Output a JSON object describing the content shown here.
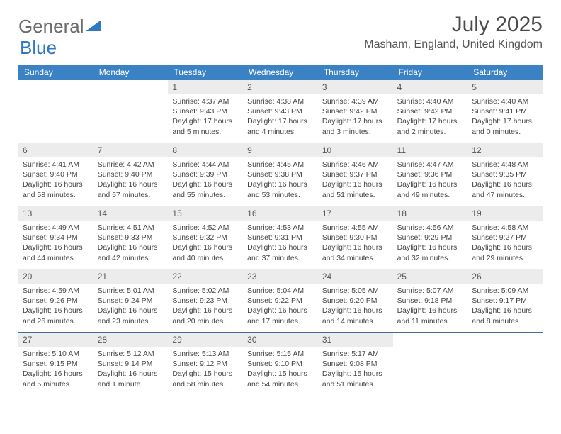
{
  "logo": {
    "text1": "General",
    "text2": "Blue",
    "triangle_color": "#2f79bf"
  },
  "title": "July 2025",
  "location": "Masham, England, United Kingdom",
  "header_bg": "#3b82c4",
  "week_border": "#3b6fa0",
  "daynum_bg": "#ececec",
  "day_names": [
    "Sunday",
    "Monday",
    "Tuesday",
    "Wednesday",
    "Thursday",
    "Friday",
    "Saturday"
  ],
  "weeks": [
    [
      null,
      null,
      {
        "n": "1",
        "sr": "4:37 AM",
        "ss": "9:43 PM",
        "dl": "17 hours and 5 minutes."
      },
      {
        "n": "2",
        "sr": "4:38 AM",
        "ss": "9:43 PM",
        "dl": "17 hours and 4 minutes."
      },
      {
        "n": "3",
        "sr": "4:39 AM",
        "ss": "9:42 PM",
        "dl": "17 hours and 3 minutes."
      },
      {
        "n": "4",
        "sr": "4:40 AM",
        "ss": "9:42 PM",
        "dl": "17 hours and 2 minutes."
      },
      {
        "n": "5",
        "sr": "4:40 AM",
        "ss": "9:41 PM",
        "dl": "17 hours and 0 minutes."
      }
    ],
    [
      {
        "n": "6",
        "sr": "4:41 AM",
        "ss": "9:40 PM",
        "dl": "16 hours and 58 minutes."
      },
      {
        "n": "7",
        "sr": "4:42 AM",
        "ss": "9:40 PM",
        "dl": "16 hours and 57 minutes."
      },
      {
        "n": "8",
        "sr": "4:44 AM",
        "ss": "9:39 PM",
        "dl": "16 hours and 55 minutes."
      },
      {
        "n": "9",
        "sr": "4:45 AM",
        "ss": "9:38 PM",
        "dl": "16 hours and 53 minutes."
      },
      {
        "n": "10",
        "sr": "4:46 AM",
        "ss": "9:37 PM",
        "dl": "16 hours and 51 minutes."
      },
      {
        "n": "11",
        "sr": "4:47 AM",
        "ss": "9:36 PM",
        "dl": "16 hours and 49 minutes."
      },
      {
        "n": "12",
        "sr": "4:48 AM",
        "ss": "9:35 PM",
        "dl": "16 hours and 47 minutes."
      }
    ],
    [
      {
        "n": "13",
        "sr": "4:49 AM",
        "ss": "9:34 PM",
        "dl": "16 hours and 44 minutes."
      },
      {
        "n": "14",
        "sr": "4:51 AM",
        "ss": "9:33 PM",
        "dl": "16 hours and 42 minutes."
      },
      {
        "n": "15",
        "sr": "4:52 AM",
        "ss": "9:32 PM",
        "dl": "16 hours and 40 minutes."
      },
      {
        "n": "16",
        "sr": "4:53 AM",
        "ss": "9:31 PM",
        "dl": "16 hours and 37 minutes."
      },
      {
        "n": "17",
        "sr": "4:55 AM",
        "ss": "9:30 PM",
        "dl": "16 hours and 34 minutes."
      },
      {
        "n": "18",
        "sr": "4:56 AM",
        "ss": "9:29 PM",
        "dl": "16 hours and 32 minutes."
      },
      {
        "n": "19",
        "sr": "4:58 AM",
        "ss": "9:27 PM",
        "dl": "16 hours and 29 minutes."
      }
    ],
    [
      {
        "n": "20",
        "sr": "4:59 AM",
        "ss": "9:26 PM",
        "dl": "16 hours and 26 minutes."
      },
      {
        "n": "21",
        "sr": "5:01 AM",
        "ss": "9:24 PM",
        "dl": "16 hours and 23 minutes."
      },
      {
        "n": "22",
        "sr": "5:02 AM",
        "ss": "9:23 PM",
        "dl": "16 hours and 20 minutes."
      },
      {
        "n": "23",
        "sr": "5:04 AM",
        "ss": "9:22 PM",
        "dl": "16 hours and 17 minutes."
      },
      {
        "n": "24",
        "sr": "5:05 AM",
        "ss": "9:20 PM",
        "dl": "16 hours and 14 minutes."
      },
      {
        "n": "25",
        "sr": "5:07 AM",
        "ss": "9:18 PM",
        "dl": "16 hours and 11 minutes."
      },
      {
        "n": "26",
        "sr": "5:09 AM",
        "ss": "9:17 PM",
        "dl": "16 hours and 8 minutes."
      }
    ],
    [
      {
        "n": "27",
        "sr": "5:10 AM",
        "ss": "9:15 PM",
        "dl": "16 hours and 5 minutes."
      },
      {
        "n": "28",
        "sr": "5:12 AM",
        "ss": "9:14 PM",
        "dl": "16 hours and 1 minute."
      },
      {
        "n": "29",
        "sr": "5:13 AM",
        "ss": "9:12 PM",
        "dl": "15 hours and 58 minutes."
      },
      {
        "n": "30",
        "sr": "5:15 AM",
        "ss": "9:10 PM",
        "dl": "15 hours and 54 minutes."
      },
      {
        "n": "31",
        "sr": "5:17 AM",
        "ss": "9:08 PM",
        "dl": "15 hours and 51 minutes."
      },
      null,
      null
    ]
  ],
  "labels": {
    "sunrise": "Sunrise:",
    "sunset": "Sunset:",
    "daylight": "Daylight:"
  }
}
